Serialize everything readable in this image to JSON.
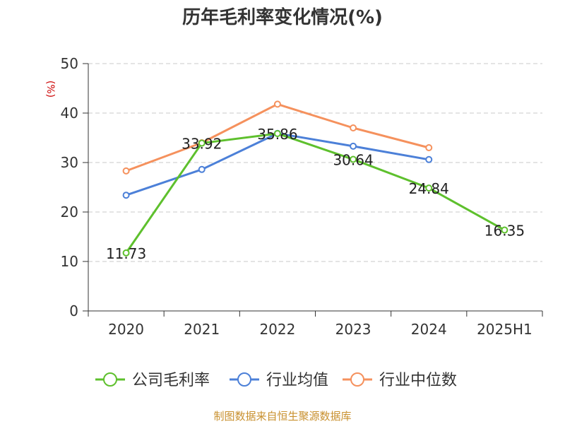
{
  "chart_data": {
    "type": "line",
    "title": "历年毛利率变化情况(%)",
    "ylabel": "(%)",
    "xlabel": "",
    "ylim": [
      0,
      50
    ],
    "yticks": [
      0,
      10,
      20,
      30,
      40,
      50
    ],
    "categories": [
      "2020",
      "2021",
      "2022",
      "2023",
      "2024",
      "2025H1"
    ],
    "grid": true,
    "legend_position": "bottom",
    "series": [
      {
        "name": "公司毛利率",
        "color": "#5ec02d",
        "values": [
          11.73,
          33.92,
          35.86,
          30.64,
          24.84,
          16.35
        ],
        "labels": [
          "11.73",
          "33.92",
          "35.86",
          "30.64",
          "24.84",
          "16.35"
        ]
      },
      {
        "name": "行业均值",
        "color": "#4c80d8",
        "values": [
          23.4,
          28.6,
          35.9,
          33.3,
          30.6,
          null
        ]
      },
      {
        "name": "行业中位数",
        "color": "#f5915d",
        "values": [
          28.3,
          34.0,
          41.8,
          37.0,
          33.0,
          null
        ]
      }
    ],
    "source": "制图数据来自恒生聚源数据库"
  }
}
